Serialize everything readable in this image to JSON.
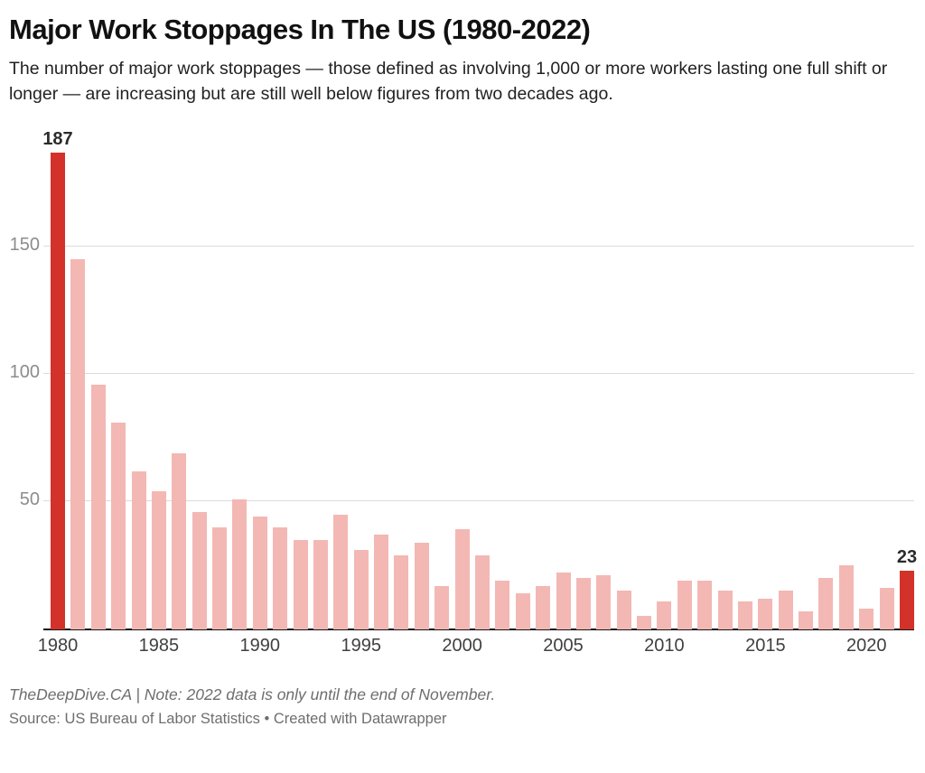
{
  "header": {
    "title": "Major Work Stoppages In The US (1980-2022)",
    "subtitle": "The number of major work stoppages — those defined as involving 1,000 or more workers lasting one full shift or longer — are increasing but are still well below figures from two decades ago."
  },
  "footer": {
    "note": "TheDeepDive.CA | Note: 2022 data is only until the end of November.",
    "source": "Source: US Bureau of Labor Statistics • Created with Datawrapper"
  },
  "chart_data": {
    "type": "bar",
    "title": "Major Work Stoppages In The US (1980-2022)",
    "x": [
      1980,
      1981,
      1982,
      1983,
      1984,
      1985,
      1986,
      1987,
      1988,
      1989,
      1990,
      1991,
      1992,
      1993,
      1994,
      1995,
      1996,
      1997,
      1998,
      1999,
      2000,
      2001,
      2002,
      2003,
      2004,
      2005,
      2006,
      2007,
      2008,
      2009,
      2010,
      2011,
      2012,
      2013,
      2014,
      2015,
      2016,
      2017,
      2018,
      2019,
      2020,
      2021,
      2022
    ],
    "values": [
      187,
      145,
      96,
      81,
      62,
      54,
      69,
      46,
      40,
      51,
      44,
      40,
      35,
      35,
      45,
      31,
      37,
      29,
      34,
      17,
      39,
      29,
      19,
      14,
      17,
      22,
      20,
      21,
      15,
      5,
      11,
      19,
      19,
      15,
      11,
      12,
      15,
      7,
      20,
      25,
      8,
      16,
      23
    ],
    "highlighted_years": [
      1980,
      2022
    ],
    "value_labels": {
      "1980": "187",
      "2022": "23"
    },
    "y_ticks": [
      50,
      100,
      150
    ],
    "x_ticks": [
      1980,
      1985,
      1990,
      1995,
      2000,
      2005,
      2010,
      2015,
      2020
    ],
    "ylim": [
      0,
      187
    ],
    "grid": true,
    "legend": "none",
    "colors": {
      "bar": "#f3b8b4",
      "highlight": "#d23229",
      "gridline": "#dcdcdc",
      "axis_line": "#161616"
    }
  }
}
